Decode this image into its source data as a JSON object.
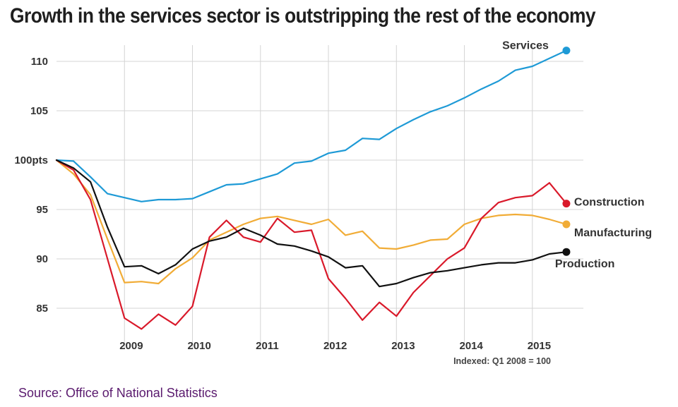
{
  "title": "Growth in the services sector is outstripping the rest of the economy",
  "source": "Source: Office of National Statistics",
  "source_color": "#5a1a6e",
  "chart_data": {
    "type": "line",
    "note": "Indexed: Q1 2008 = 100",
    "x_ticks": [
      "2009",
      "2010",
      "2011",
      "2012",
      "2013",
      "2014",
      "2015"
    ],
    "y_ticks": [
      {
        "value": 85,
        "label": "85"
      },
      {
        "value": 90,
        "label": "90"
      },
      {
        "value": 95,
        "label": "95"
      },
      {
        "value": 100,
        "label": "100pts"
      },
      {
        "value": 105,
        "label": "105"
      },
      {
        "value": 110,
        "label": "110"
      }
    ],
    "xlim": [
      2008.0,
      2015.75
    ],
    "ylim": [
      82.5,
      112.5
    ],
    "grid": true,
    "x": [
      2008.0,
      2008.25,
      2008.5,
      2008.75,
      2009.0,
      2009.25,
      2009.5,
      2009.75,
      2010.0,
      2010.25,
      2010.5,
      2010.75,
      2011.0,
      2011.25,
      2011.5,
      2011.75,
      2012.0,
      2012.25,
      2012.5,
      2012.75,
      2013.0,
      2013.25,
      2013.5,
      2013.75,
      2014.0,
      2014.25,
      2014.5,
      2014.75,
      2015.0,
      2015.25,
      2015.5
    ],
    "series": [
      {
        "name": "Services",
        "color": "#1e9ad6",
        "values": [
          100.0,
          99.9,
          98.3,
          96.6,
          96.2,
          95.8,
          96.0,
          96.0,
          96.1,
          96.8,
          97.5,
          97.6,
          98.1,
          98.6,
          99.7,
          99.9,
          100.7,
          101.0,
          102.2,
          102.1,
          103.2,
          104.1,
          104.9,
          105.5,
          106.3,
          107.2,
          108.0,
          109.1,
          109.5,
          110.3,
          111.1
        ]
      },
      {
        "name": "Construction",
        "color": "#d9192a",
        "values": [
          100.0,
          99.0,
          96.0,
          90.0,
          84.0,
          82.9,
          84.4,
          83.3,
          85.2,
          92.2,
          93.9,
          92.2,
          91.7,
          94.1,
          92.7,
          92.9,
          88.0,
          86.0,
          83.8,
          85.6,
          84.2,
          86.6,
          88.3,
          90.0,
          91.1,
          94.1,
          95.7,
          96.2,
          96.4,
          97.7,
          95.6
        ]
      },
      {
        "name": "Manufacturing",
        "color": "#f1ac36",
        "values": [
          100.0,
          98.6,
          96.5,
          92.0,
          87.6,
          87.7,
          87.5,
          89.0,
          90.1,
          91.9,
          92.7,
          93.5,
          94.1,
          94.3,
          93.9,
          93.5,
          94.0,
          92.4,
          92.8,
          91.1,
          91.0,
          91.4,
          91.9,
          92.0,
          93.5,
          94.1,
          94.4,
          94.5,
          94.4,
          94.0,
          93.5
        ]
      },
      {
        "name": "Production",
        "color": "#111111",
        "values": [
          100.0,
          99.2,
          97.8,
          93.2,
          89.2,
          89.3,
          88.5,
          89.4,
          91.0,
          91.8,
          92.2,
          93.1,
          92.4,
          91.5,
          91.3,
          90.8,
          90.2,
          89.1,
          89.3,
          87.2,
          87.5,
          88.1,
          88.6,
          88.8,
          89.1,
          89.4,
          89.6,
          89.6,
          89.9,
          90.5,
          90.7
        ]
      }
    ]
  }
}
